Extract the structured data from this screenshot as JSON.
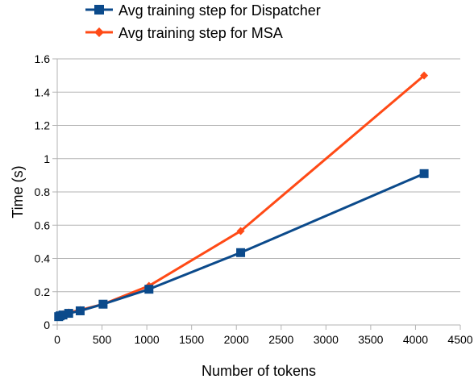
{
  "chart_data": {
    "type": "line",
    "xlabel": "Number of tokens",
    "ylabel": "Time (s)",
    "xlim": [
      0,
      4500
    ],
    "ylim": [
      0,
      1.6
    ],
    "xticks": [
      "0",
      "500",
      "1000",
      "1500",
      "2000",
      "2500",
      "3000",
      "3500",
      "4000",
      "4500"
    ],
    "yticks": [
      "0",
      "0.2",
      "0.4",
      "0.6",
      "0.8",
      "1",
      "1.2",
      "1.4",
      "1.6"
    ],
    "grid": "horizontal",
    "legend_position": "top",
    "series": [
      {
        "name": "Avg training step for Dispatcher",
        "color": "#0b4a8b",
        "marker": "square",
        "x": [
          16,
          32,
          64,
          128,
          256,
          512,
          1024,
          2048,
          4096
        ],
        "y": [
          0.05,
          0.055,
          0.06,
          0.07,
          0.085,
          0.125,
          0.215,
          0.435,
          0.91
        ]
      },
      {
        "name": "Avg training step for MSA",
        "color": "#ff4a16",
        "marker": "diamond",
        "x": [
          16,
          32,
          64,
          128,
          256,
          512,
          1024,
          2048,
          4096
        ],
        "y": [
          0.055,
          0.06,
          0.065,
          0.075,
          0.09,
          0.125,
          0.235,
          0.565,
          1.5
        ]
      }
    ]
  }
}
